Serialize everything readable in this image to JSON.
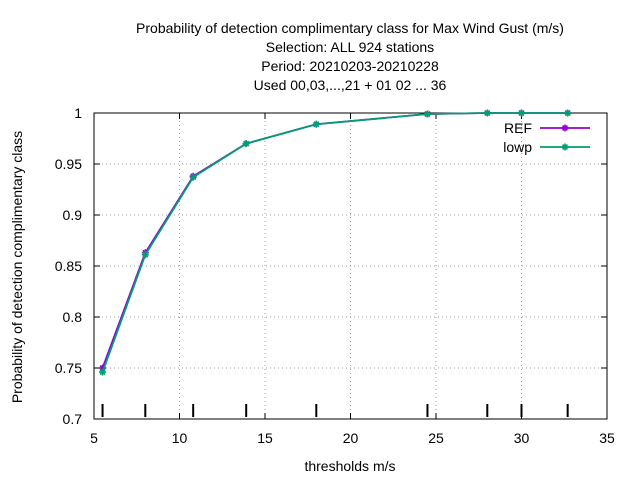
{
  "chart_data": {
    "type": "line",
    "title_lines": [
      "Probability of detection complimentary class  for Max Wind Gust (m/s)",
      "Selection: ALL    924 stations",
      "Period: 20210203-20210228",
      "Used  00,03,...,21  + 01 02 ... 36"
    ],
    "xlabel": "thresholds m/s",
    "ylabel": "Probability of detection complimentary class",
    "xlim": [
      5,
      35
    ],
    "ylim": [
      0.7,
      1.0
    ],
    "xticks": [
      5,
      10,
      15,
      20,
      25,
      30,
      35
    ],
    "yticks": [
      0.7,
      0.75,
      0.8,
      0.85,
      0.9,
      0.95,
      1.0
    ],
    "xtick_labels": [
      "5",
      "10",
      "15",
      "20",
      "25",
      "30",
      "35"
    ],
    "ytick_labels": [
      "0.7",
      "0.75",
      "0.8",
      "0.85",
      "0.9",
      "0.95",
      "1"
    ],
    "grid": true,
    "legend_position": "top-right",
    "threshold_markers_x": [
      5.5,
      8,
      10.8,
      13.9,
      18,
      24.5,
      28,
      30,
      32.7
    ],
    "series": [
      {
        "name": "REF",
        "color": "#9400d3",
        "x": [
          5.5,
          8,
          10.8,
          13.9,
          18,
          24.5,
          28,
          30,
          32.7
        ],
        "y": [
          0.75,
          0.863,
          0.938,
          0.97,
          0.989,
          0.999,
          1.0,
          1.0,
          1.0
        ]
      },
      {
        "name": "lowp",
        "color": "#009e73",
        "x": [
          5.5,
          8,
          10.8,
          13.9,
          18,
          24.5,
          28,
          30,
          32.7
        ],
        "y": [
          0.746,
          0.861,
          0.937,
          0.97,
          0.989,
          0.999,
          1.0,
          1.0,
          1.0
        ]
      }
    ]
  }
}
